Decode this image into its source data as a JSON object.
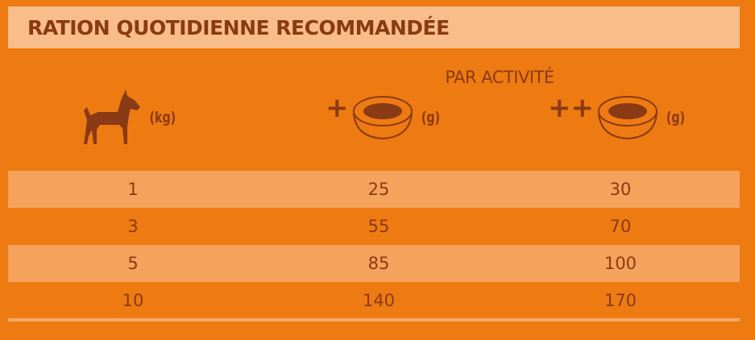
{
  "title": "RATION QUOTIDIENNE RECOMMANDÉE",
  "subtitle": "PAR ACTIVITÉ",
  "columns": [
    {
      "icon": "dog-icon",
      "unit": "(kg)"
    },
    {
      "icon": "food-bowl-icon",
      "prefix": "+",
      "unit": "(g)"
    },
    {
      "icon": "food-bowl-icon",
      "prefix": "++",
      "unit": "(g)"
    }
  ],
  "rows": [
    [
      "1",
      "25",
      "30"
    ],
    [
      "3",
      "55",
      "70"
    ],
    [
      "5",
      "85",
      "100"
    ],
    [
      "10",
      "140",
      "170"
    ]
  ],
  "colors": {
    "background": "#ee7a12",
    "title_bar": "#f8bd8a",
    "alt_row": "#f4a25c",
    "text": "#8a3a14"
  }
}
